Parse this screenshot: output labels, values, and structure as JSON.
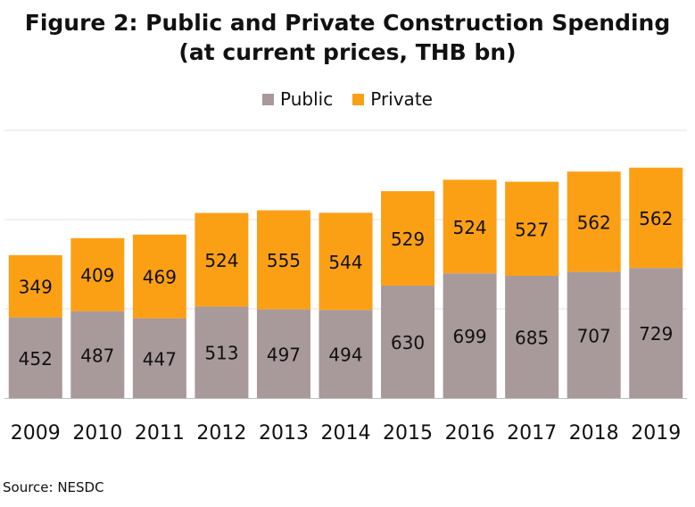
{
  "title_line1": "Figure 2: Public and Private Construction Spending",
  "title_line2": "(at current prices, THB bn)",
  "source": "Source: NESDC",
  "colors": {
    "public": "#a8999b",
    "private": "#fba015",
    "grid": "#e3e3e3",
    "axis": "#bfbfbf"
  },
  "chart_data": {
    "type": "bar",
    "stacked": true,
    "categories": [
      "2009",
      "2010",
      "2011",
      "2012",
      "2013",
      "2014",
      "2015",
      "2016",
      "2017",
      "2018",
      "2019"
    ],
    "series": [
      {
        "name": "Public",
        "values": [
          452,
          487,
          447,
          513,
          497,
          494,
          630,
          699,
          685,
          707,
          729
        ]
      },
      {
        "name": "Private",
        "values": [
          349,
          409,
          469,
          524,
          555,
          544,
          529,
          524,
          527,
          562,
          562
        ]
      }
    ],
    "legend": "top-center",
    "grid": true,
    "ylim": [
      0,
      1500
    ],
    "y_gridlines": [
      500,
      1000,
      1500
    ],
    "xlabel": "",
    "ylabel": ""
  }
}
